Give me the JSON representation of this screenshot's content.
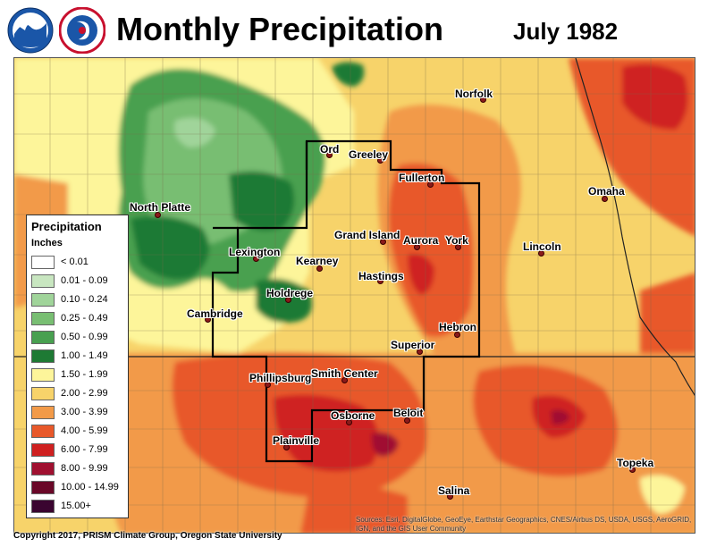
{
  "header": {
    "title": "Monthly Precipitation",
    "date": "July 1982",
    "logos": [
      "noaa-logo",
      "nws-logo"
    ]
  },
  "legend": {
    "title": "Precipitation",
    "units": "Inches",
    "items": [
      {
        "label": "< 0.01",
        "color": "#ffffff"
      },
      {
        "label": "0.01 - 0.09",
        "color": "#c8e6c0"
      },
      {
        "label": "0.10 - 0.24",
        "color": "#a0d49a"
      },
      {
        "label": "0.25 - 0.49",
        "color": "#78be72"
      },
      {
        "label": "0.50 - 0.99",
        "color": "#48a050"
      },
      {
        "label": "1.00 - 1.49",
        "color": "#1e7a34"
      },
      {
        "label": "1.50 - 1.99",
        "color": "#fdf59a"
      },
      {
        "label": "2.00 - 2.99",
        "color": "#f7d36a"
      },
      {
        "label": "3.00 - 3.99",
        "color": "#f29a48"
      },
      {
        "label": "4.00 - 5.99",
        "color": "#e8582a"
      },
      {
        "label": "6.00 - 7.99",
        "color": "#cf2020"
      },
      {
        "label": "8.00 - 9.99",
        "color": "#a01030"
      },
      {
        "label": "10.00 - 14.99",
        "color": "#6a0828"
      },
      {
        "label": "15.00+",
        "color": "#3a0530"
      }
    ]
  },
  "cities": [
    {
      "id": "norfolk",
      "name": "Norfolk"
    },
    {
      "id": "ord",
      "name": "Ord"
    },
    {
      "id": "greeley",
      "name": "Greeley"
    },
    {
      "id": "fullerton",
      "name": "Fullerton"
    },
    {
      "id": "omaha",
      "name": "Omaha"
    },
    {
      "id": "north-platte",
      "name": "North Platte"
    },
    {
      "id": "grand-island",
      "name": "Grand Island"
    },
    {
      "id": "aurora",
      "name": "Aurora"
    },
    {
      "id": "york",
      "name": "York"
    },
    {
      "id": "lincoln",
      "name": "Lincoln"
    },
    {
      "id": "lexington",
      "name": "Lexington"
    },
    {
      "id": "kearney",
      "name": "Kearney"
    },
    {
      "id": "hastings",
      "name": "Hastings"
    },
    {
      "id": "holdrege",
      "name": "Holdrege"
    },
    {
      "id": "cambridge",
      "name": "Cambridge"
    },
    {
      "id": "hebron",
      "name": "Hebron"
    },
    {
      "id": "superior",
      "name": "Superior"
    },
    {
      "id": "phillipsburg",
      "name": "Phillipsburg"
    },
    {
      "id": "smith-center",
      "name": "Smith Center"
    },
    {
      "id": "osborne",
      "name": "Osborne"
    },
    {
      "id": "beloit",
      "name": "Beloit"
    },
    {
      "id": "plainville",
      "name": "Plainville"
    },
    {
      "id": "topeka",
      "name": "Topeka"
    },
    {
      "id": "salina",
      "name": "Salina"
    }
  ],
  "footer": {
    "copyright": "Copyright 2017, PRISM Climate Group, Oregon State University",
    "attribution": "Sources: Esri, DigitalGlobe, GeoEye, Earthstar Geographics, CNES/Airbus DS, USDA, USGS, AeroGRID, IGN, and the GIS User Community"
  }
}
